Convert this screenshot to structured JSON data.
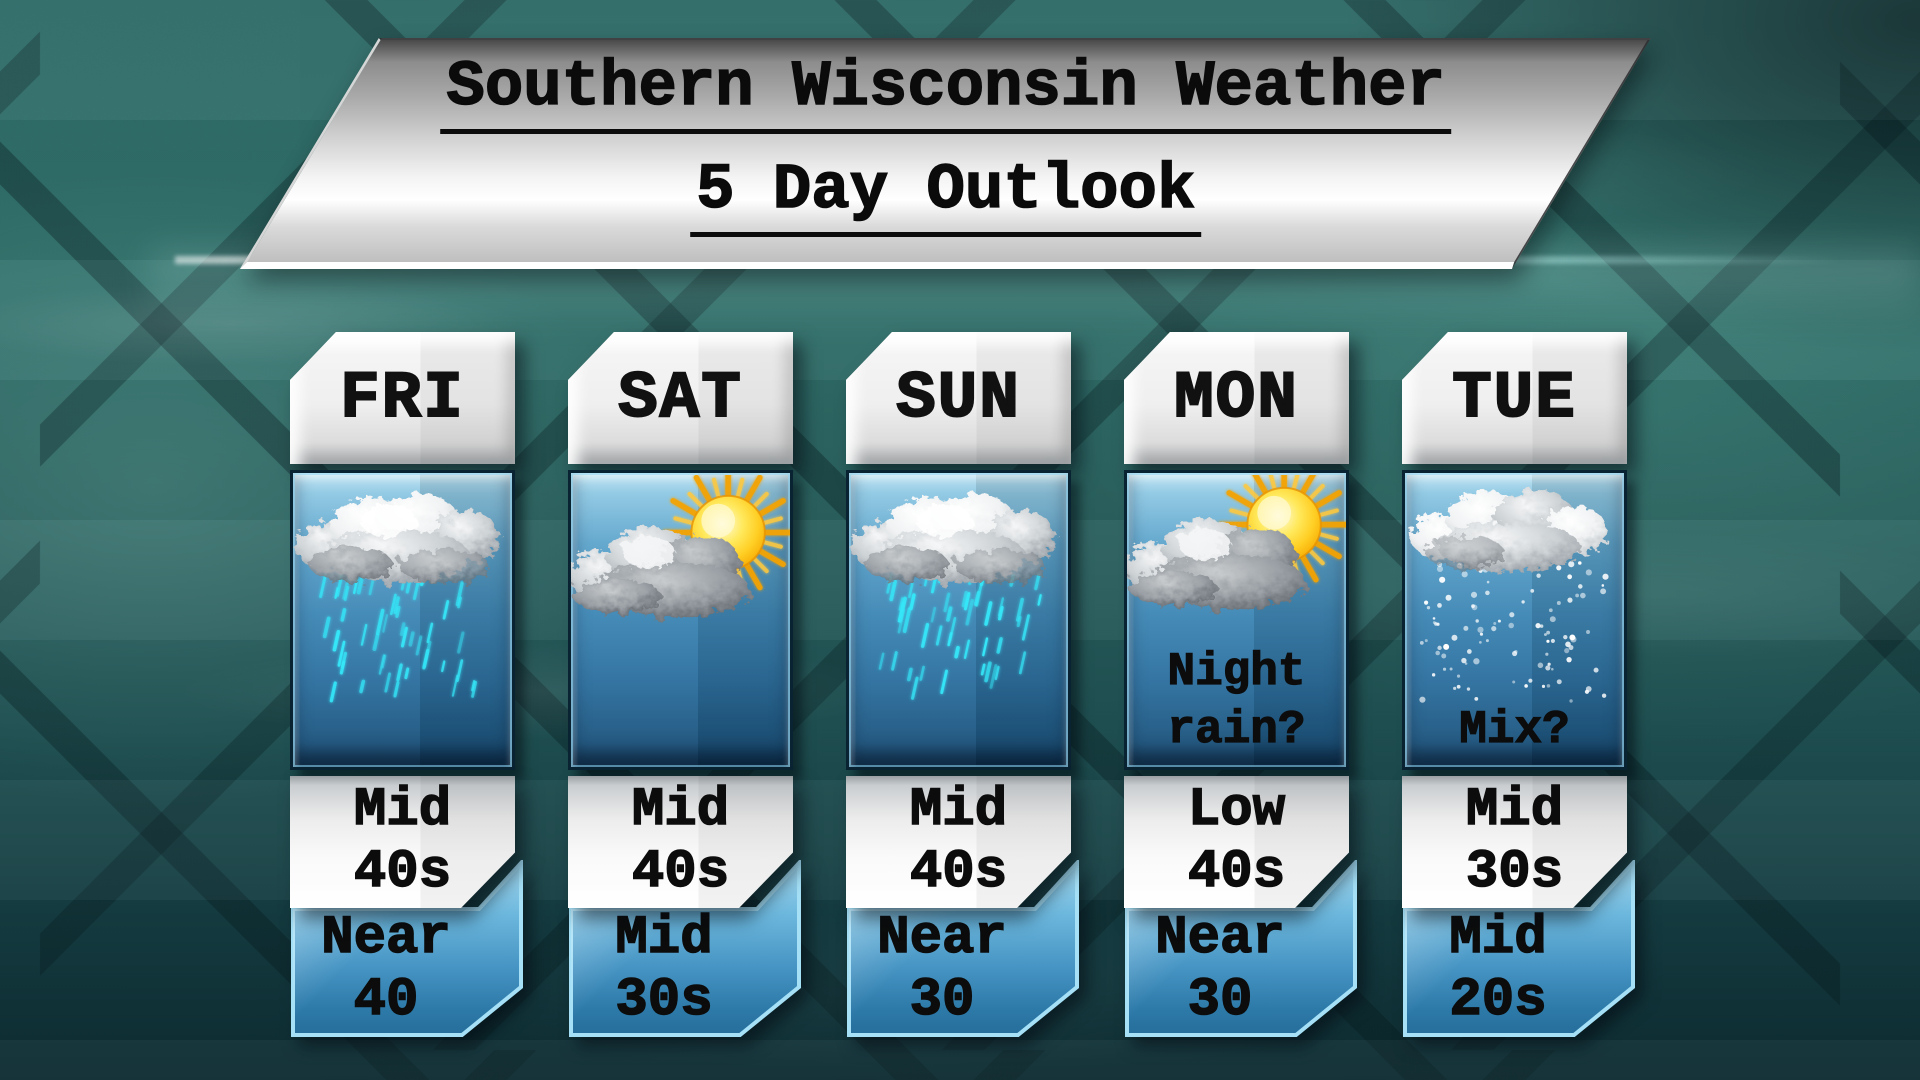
{
  "banner": {
    "title": "Southern Wisconsin Weather",
    "subtitle": "5 Day Outlook"
  },
  "columns": [
    {
      "day": "FRI",
      "icon": "rain-cloud-icon",
      "note": [],
      "high": [
        "Mid",
        "40s"
      ],
      "low": [
        "Near",
        "40"
      ]
    },
    {
      "day": "SAT",
      "icon": "sun-cloud-icon",
      "note": [],
      "high": [
        "Mid",
        "40s"
      ],
      "low": [
        "Mid",
        "30s"
      ]
    },
    {
      "day": "SUN",
      "icon": "rain-cloud-icon",
      "note": [],
      "high": [
        "Mid",
        "40s"
      ],
      "low": [
        "Near",
        "30"
      ]
    },
    {
      "day": "MON",
      "icon": "sun-cloud-icon",
      "note": [
        "Night",
        "rain?"
      ],
      "high": [
        "Low",
        "40s"
      ],
      "low": [
        "Near",
        "30"
      ]
    },
    {
      "day": "TUE",
      "icon": "snow-cloud-icon",
      "note": [
        "Mix?"
      ],
      "high": [
        "Mid",
        "30s"
      ],
      "low": [
        "Mid",
        "20s"
      ]
    }
  ],
  "colors": {
    "background_teal": "#2e6360",
    "lattice_band": "#0a2430",
    "panel_blue": "#4088b6",
    "low_ribbon_border": "#a5e0f7",
    "rain_cyan": "#35e6f8",
    "snow_white": "#ffffff",
    "sun_yellow": "#ffcf25",
    "banner_silver": "#d3d3d3",
    "text_black": "#0b0b0b",
    "header_white": "#f4f4f4"
  }
}
